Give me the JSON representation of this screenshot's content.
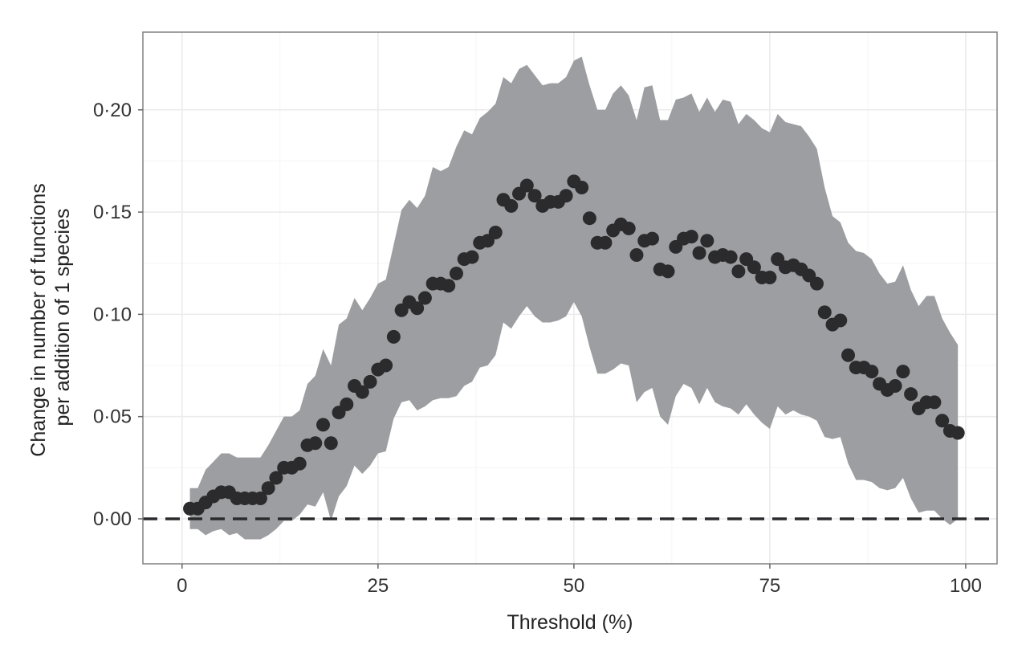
{
  "chart_data": {
    "type": "scatter",
    "title": "",
    "xlabel": "Threshold (%)",
    "ylabel_lines": [
      "Change in number of functions",
      "per addition of 1 species"
    ],
    "xlim": [
      -5,
      104
    ],
    "ylim": [
      -0.022,
      0.238
    ],
    "x_ticks": [
      0,
      25,
      50,
      75,
      100
    ],
    "x_tick_labels": [
      "0",
      "25",
      "50",
      "75",
      "100"
    ],
    "y_ticks": [
      0.0,
      0.05,
      0.1,
      0.15,
      0.2
    ],
    "y_tick_labels": [
      "0·00",
      "0·05",
      "0·10",
      "0·15",
      "0·20"
    ],
    "grid": true,
    "reference_line": {
      "y": 0.0,
      "style": "dashed"
    },
    "colors": {
      "points": "#2b2b2e",
      "band": "#9d9ea1",
      "grid": "#ebebeb",
      "frame": "#808080",
      "reference": "#2b2b2e"
    },
    "x": [
      1,
      2,
      3,
      4,
      5,
      6,
      7,
      8,
      9,
      10,
      11,
      12,
      13,
      14,
      15,
      16,
      17,
      18,
      19,
      20,
      21,
      22,
      23,
      24,
      25,
      26,
      27,
      28,
      29,
      30,
      31,
      32,
      33,
      34,
      35,
      36,
      37,
      38,
      39,
      40,
      41,
      42,
      43,
      44,
      45,
      46,
      47,
      48,
      49,
      50,
      51,
      52,
      53,
      54,
      55,
      56,
      57,
      58,
      59,
      60,
      61,
      62,
      63,
      64,
      65,
      66,
      67,
      68,
      69,
      70,
      71,
      72,
      73,
      74,
      75,
      76,
      77,
      78,
      79,
      80,
      81,
      82,
      83,
      84,
      85,
      86,
      87,
      88,
      89,
      90,
      91,
      92,
      93,
      94,
      95,
      96,
      97,
      98,
      99
    ],
    "y": [
      0.005,
      0.005,
      0.008,
      0.011,
      0.013,
      0.013,
      0.01,
      0.01,
      0.01,
      0.01,
      0.015,
      0.02,
      0.025,
      0.025,
      0.027,
      0.036,
      0.037,
      0.046,
      0.037,
      0.052,
      0.056,
      0.065,
      0.062,
      0.067,
      0.073,
      0.075,
      0.089,
      0.102,
      0.106,
      0.103,
      0.108,
      0.115,
      0.115,
      0.114,
      0.12,
      0.127,
      0.128,
      0.135,
      0.136,
      0.14,
      0.156,
      0.153,
      0.159,
      0.163,
      0.158,
      0.153,
      0.155,
      0.155,
      0.158,
      0.165,
      0.162,
      0.147,
      0.135,
      0.135,
      0.141,
      0.144,
      0.142,
      0.129,
      0.136,
      0.137,
      0.122,
      0.121,
      0.133,
      0.137,
      0.138,
      0.13,
      0.136,
      0.128,
      0.129,
      0.128,
      0.121,
      0.127,
      0.123,
      0.118,
      0.118,
      0.127,
      0.123,
      0.124,
      0.122,
      0.119,
      0.115,
      0.101,
      0.095,
      0.097,
      0.08,
      0.074,
      0.074,
      0.072,
      0.066,
      0.063,
      0.065,
      0.072,
      0.061,
      0.054,
      0.057,
      0.057,
      0.048,
      0.043,
      0.042
    ],
    "band_upper": [
      0.015,
      0.015,
      0.024,
      0.028,
      0.032,
      0.032,
      0.03,
      0.03,
      0.03,
      0.03,
      0.036,
      0.043,
      0.05,
      0.05,
      0.053,
      0.066,
      0.07,
      0.083,
      0.075,
      0.095,
      0.098,
      0.108,
      0.102,
      0.108,
      0.115,
      0.117,
      0.134,
      0.151,
      0.156,
      0.152,
      0.158,
      0.172,
      0.17,
      0.172,
      0.182,
      0.19,
      0.188,
      0.196,
      0.199,
      0.203,
      0.216,
      0.213,
      0.22,
      0.222,
      0.217,
      0.212,
      0.213,
      0.213,
      0.216,
      0.224,
      0.226,
      0.212,
      0.2,
      0.2,
      0.208,
      0.212,
      0.207,
      0.195,
      0.211,
      0.212,
      0.195,
      0.195,
      0.205,
      0.206,
      0.208,
      0.199,
      0.206,
      0.199,
      0.205,
      0.204,
      0.193,
      0.198,
      0.195,
      0.191,
      0.189,
      0.198,
      0.194,
      0.193,
      0.192,
      0.187,
      0.181,
      0.162,
      0.148,
      0.145,
      0.135,
      0.131,
      0.13,
      0.127,
      0.12,
      0.115,
      0.116,
      0.124,
      0.112,
      0.104,
      0.109,
      0.109,
      0.098,
      0.091,
      0.085
    ],
    "band_lower": [
      -0.005,
      -0.005,
      -0.008,
      -0.006,
      -0.005,
      -0.008,
      -0.007,
      -0.01,
      -0.01,
      -0.01,
      -0.008,
      -0.005,
      -0.001,
      -0.001,
      0.002,
      0.007,
      0.006,
      0.013,
      -0.001,
      0.011,
      0.016,
      0.026,
      0.022,
      0.026,
      0.032,
      0.033,
      0.049,
      0.057,
      0.058,
      0.053,
      0.055,
      0.058,
      0.059,
      0.059,
      0.06,
      0.065,
      0.067,
      0.074,
      0.075,
      0.08,
      0.096,
      0.093,
      0.099,
      0.104,
      0.099,
      0.096,
      0.096,
      0.097,
      0.099,
      0.106,
      0.099,
      0.084,
      0.071,
      0.071,
      0.073,
      0.076,
      0.075,
      0.057,
      0.062,
      0.064,
      0.05,
      0.046,
      0.06,
      0.066,
      0.064,
      0.056,
      0.064,
      0.057,
      0.055,
      0.054,
      0.051,
      0.056,
      0.051,
      0.047,
      0.044,
      0.055,
      0.051,
      0.053,
      0.051,
      0.05,
      0.048,
      0.04,
      0.039,
      0.04,
      0.027,
      0.019,
      0.019,
      0.018,
      0.015,
      0.014,
      0.015,
      0.02,
      0.01,
      0.003,
      0.004,
      0.004,
      0.0,
      -0.003,
      0.0
    ]
  }
}
